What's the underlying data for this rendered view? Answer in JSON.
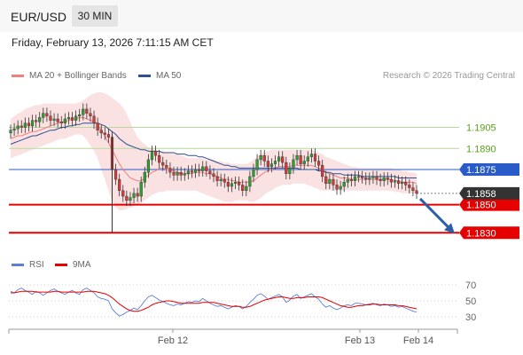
{
  "header": {
    "symbol": "EUR/USD",
    "timeframe": "30 MIN"
  },
  "datetime": "Friday, February 13, 2026 7:11:15 AM CET",
  "legend": [
    {
      "label": "MA 20 + Bollinger Bands",
      "color": "#f08080"
    },
    {
      "label": "MA 50",
      "color": "#2f4f8f"
    }
  ],
  "credit": "Research © 2026 Trading Central",
  "rsi_legend": [
    {
      "label": "RSI",
      "color": "#5b7fd6"
    },
    {
      "label": "9MA",
      "color": "#e60000"
    }
  ],
  "colors": {
    "green_level": "#b5d99c",
    "blue_level": "#2a5cc9",
    "red_level": "#e60000",
    "arrow": "#2b5fa8"
  },
  "chart_data": [
    {
      "type": "candlestick",
      "y_range": [
        1.1815,
        1.1935
      ],
      "x_ticks": [
        "Feb 12",
        "Feb 13",
        "Feb 14"
      ],
      "levels": [
        {
          "value": 1.1905,
          "label": "1.1905",
          "kind": "resistance-light"
        },
        {
          "value": 1.189,
          "label": "1.1890",
          "kind": "resistance-light"
        },
        {
          "value": 1.1875,
          "label": "1.1875",
          "kind": "pivot"
        },
        {
          "value": 1.185,
          "label": "1.1850",
          "kind": "support"
        },
        {
          "value": 1.183,
          "label": "1.1830",
          "kind": "support"
        }
      ],
      "last_price": {
        "value": 1.1858,
        "label": "1.1858"
      },
      "forecast_arrow": {
        "from": 1.1858,
        "to": 1.183,
        "direction": "down"
      },
      "series": {
        "close": [
          1.1903,
          1.1904,
          1.1906,
          1.1905,
          1.1908,
          1.1906,
          1.191,
          1.1909,
          1.1912,
          1.1915,
          1.1913,
          1.191,
          1.1911,
          1.1909,
          1.1908,
          1.1911,
          1.1912,
          1.191,
          1.1913,
          1.1914,
          1.1918,
          1.1915,
          1.1913,
          1.1908,
          1.1903,
          1.1901,
          1.19,
          1.1898,
          1.1875,
          1.1868,
          1.186,
          1.1856,
          1.1853,
          1.1855,
          1.1858,
          1.1856,
          1.1866,
          1.1873,
          1.1882,
          1.1888,
          1.1885,
          1.188,
          1.1878,
          1.1876,
          1.1873,
          1.1871,
          1.1873,
          1.1871,
          1.1872,
          1.1874,
          1.1873,
          1.1875,
          1.1874,
          1.1877,
          1.1874,
          1.1872,
          1.187,
          1.1867,
          1.1868,
          1.1866,
          1.1863,
          1.1865,
          1.1866,
          1.1864,
          1.186,
          1.1863,
          1.187,
          1.1875,
          1.1882,
          1.1885,
          1.1881,
          1.1877,
          1.1879,
          1.1881,
          1.1884,
          1.188,
          1.1872,
          1.1876,
          1.1882,
          1.1885,
          1.1879,
          1.1881,
          1.1884,
          1.1886,
          1.1881,
          1.1878,
          1.187,
          1.1865,
          1.1868,
          1.1864,
          1.1861,
          1.1863,
          1.1866,
          1.1868,
          1.1867,
          1.187,
          1.187,
          1.1869,
          1.1868,
          1.1869,
          1.187,
          1.1868,
          1.1867,
          1.1869,
          1.1868,
          1.1866,
          1.1867,
          1.1865,
          1.1866,
          1.1864,
          1.1862,
          1.186,
          1.1858
        ],
        "ma20": [
          1.1897,
          1.1898,
          1.1899,
          1.1899,
          1.19,
          1.1901,
          1.1902,
          1.1902,
          1.1903,
          1.1904,
          1.1905,
          1.1906,
          1.1907,
          1.1908,
          1.1909,
          1.1909,
          1.191,
          1.1911,
          1.1911,
          1.1912,
          1.1912,
          1.1911,
          1.191,
          1.1909,
          1.1907,
          1.1903,
          1.1899,
          1.1894,
          1.1889,
          1.1884,
          1.1879,
          1.1875,
          1.1872,
          1.1869,
          1.1868,
          1.1867,
          1.1867,
          1.1869,
          1.1871,
          1.1873,
          1.1874,
          1.1876,
          1.1876,
          1.1875,
          1.1875,
          1.1874,
          1.1873,
          1.1872,
          1.1872,
          1.1872,
          1.1872,
          1.1873,
          1.1873,
          1.1873,
          1.1872,
          1.1872,
          1.1871,
          1.187,
          1.1869,
          1.1868,
          1.1868,
          1.1867,
          1.1867,
          1.1866,
          1.1866,
          1.1866,
          1.1866,
          1.1867,
          1.1869,
          1.1871,
          1.1873,
          1.1874,
          1.1875,
          1.1876,
          1.1877,
          1.1877,
          1.1877,
          1.1877,
          1.1878,
          1.1878,
          1.1878,
          1.1878,
          1.1878,
          1.1878,
          1.1877,
          1.1876,
          1.1875,
          1.1873,
          1.1872,
          1.1871,
          1.187,
          1.1869,
          1.1869,
          1.1869,
          1.1868,
          1.1868,
          1.1868,
          1.1868,
          1.1868,
          1.1868,
          1.1868,
          1.1868,
          1.1868,
          1.1868,
          1.1868,
          1.1868,
          1.1867,
          1.1867,
          1.1866,
          1.1866,
          1.1866,
          1.1866,
          1.1865
        ],
        "bb_upper": [
          1.1911,
          1.1913,
          1.1915,
          1.1916,
          1.1918,
          1.1919,
          1.192,
          1.1921,
          1.1921,
          1.1922,
          1.1922,
          1.1922,
          1.1922,
          1.1922,
          1.1922,
          1.1922,
          1.1922,
          1.1922,
          1.1922,
          1.1923,
          1.1924,
          1.1926,
          1.1928,
          1.1929,
          1.193,
          1.193,
          1.1929,
          1.1928,
          1.1926,
          1.1924,
          1.1922,
          1.1919,
          1.1915,
          1.1909,
          1.1903,
          1.1898,
          1.1895,
          1.1893,
          1.1891,
          1.189,
          1.1889,
          1.1888,
          1.1888,
          1.1887,
          1.1887,
          1.1886,
          1.1886,
          1.1885,
          1.1884,
          1.1883,
          1.1883,
          1.1883,
          1.1883,
          1.1883,
          1.1882,
          1.1882,
          1.1882,
          1.1881,
          1.1881,
          1.188,
          1.188,
          1.1879,
          1.1879,
          1.1879,
          1.1879,
          1.1879,
          1.188,
          1.1882,
          1.1884,
          1.1886,
          1.1887,
          1.1888,
          1.1889,
          1.1889,
          1.1889,
          1.1889,
          1.1889,
          1.1889,
          1.1889,
          1.1889,
          1.1889,
          1.1889,
          1.1889,
          1.1889,
          1.1888,
          1.1887,
          1.1886,
          1.1884,
          1.1883,
          1.1882,
          1.1881,
          1.188,
          1.1879,
          1.1878,
          1.1877,
          1.1877,
          1.1876,
          1.1876,
          1.1876,
          1.1876,
          1.1876,
          1.1876,
          1.1876,
          1.1876,
          1.1876,
          1.1876,
          1.1875,
          1.1875,
          1.1874,
          1.1874,
          1.1873,
          1.1873,
          1.1872
        ],
        "bb_lower": [
          1.1883,
          1.1884,
          1.1885,
          1.1886,
          1.1887,
          1.1888,
          1.1889,
          1.189,
          1.1891,
          1.1892,
          1.1893,
          1.1894,
          1.1895,
          1.1896,
          1.1897,
          1.1897,
          1.1898,
          1.1899,
          1.19,
          1.19,
          1.1899,
          1.1896,
          1.1892,
          1.1888,
          1.1883,
          1.1875,
          1.1868,
          1.186,
          1.1853,
          1.1848,
          1.1846,
          1.1846,
          1.1847,
          1.1848,
          1.1849,
          1.185,
          1.1851,
          1.1853,
          1.1855,
          1.1857,
          1.1858,
          1.1859,
          1.1859,
          1.186,
          1.186,
          1.186,
          1.186,
          1.186,
          1.186,
          1.186,
          1.186,
          1.186,
          1.1859,
          1.1858,
          1.1857,
          1.1856,
          1.1855,
          1.1854,
          1.1853,
          1.1852,
          1.1852,
          1.1852,
          1.1853,
          1.1853,
          1.1853,
          1.1853,
          1.1852,
          1.1852,
          1.1853,
          1.1855,
          1.1857,
          1.1859,
          1.186,
          1.1862,
          1.1863,
          1.1864,
          1.1864,
          1.1864,
          1.1865,
          1.1865,
          1.1865,
          1.1865,
          1.1864,
          1.1863,
          1.1862,
          1.1861,
          1.186,
          1.186,
          1.186,
          1.186,
          1.186,
          1.186,
          1.186,
          1.186,
          1.186,
          1.186,
          1.186,
          1.186,
          1.186,
          1.186,
          1.186,
          1.186,
          1.186,
          1.186,
          1.186,
          1.186,
          1.1859,
          1.1859,
          1.1858,
          1.1858,
          1.1858,
          1.1858,
          1.1858
        ],
        "ma50": [
          1.1893,
          1.1894,
          1.1895,
          1.1896,
          1.1897,
          1.1898,
          1.1899,
          1.1899,
          1.19,
          1.1901,
          1.1902,
          1.1903,
          1.1903,
          1.1904,
          1.1905,
          1.1905,
          1.1906,
          1.1906,
          1.1907,
          1.1907,
          1.1908,
          1.1908,
          1.1908,
          1.1908,
          1.1908,
          1.1907,
          1.1906,
          1.1904,
          1.1902,
          1.19,
          1.1897,
          1.1895,
          1.1893,
          1.1892,
          1.1891,
          1.189,
          1.1889,
          1.1889,
          1.1888,
          1.1888,
          1.1888,
          1.1888,
          1.1887,
          1.1887,
          1.1887,
          1.1887,
          1.1886,
          1.1886,
          1.1886,
          1.1885,
          1.1885,
          1.1885,
          1.1884,
          1.1884,
          1.1883,
          1.1882,
          1.1881,
          1.188,
          1.1879,
          1.1878,
          1.1878,
          1.1877,
          1.1877,
          1.1876,
          1.1876,
          1.1876,
          1.1876,
          1.1876,
          1.1876,
          1.1876,
          1.1876,
          1.1876,
          1.1876,
          1.1876,
          1.1876,
          1.1876,
          1.1876,
          1.1876,
          1.1876,
          1.1876,
          1.1875,
          1.1875,
          1.1875,
          1.1875,
          1.1875,
          1.1874,
          1.1874,
          1.1873,
          1.1873,
          1.1872,
          1.1872,
          1.1872,
          1.1871,
          1.1871,
          1.1871,
          1.1871,
          1.1871,
          1.187,
          1.187,
          1.187,
          1.187,
          1.187,
          1.187,
          1.187,
          1.187,
          1.187,
          1.187,
          1.1869,
          1.1869,
          1.1869,
          1.1869,
          1.1869,
          1.1869
        ]
      }
    },
    {
      "type": "line",
      "name": "RSI",
      "y_range": [
        20,
        80
      ],
      "y_ticks": [
        70,
        50,
        30
      ],
      "rsi": [
        62,
        60,
        64,
        66,
        63,
        61,
        58,
        62,
        60,
        57,
        60,
        63,
        65,
        62,
        60,
        58,
        61,
        63,
        60,
        58,
        64,
        66,
        63,
        60,
        55,
        53,
        52,
        50,
        40,
        35,
        31,
        33,
        36,
        38,
        41,
        39,
        44,
        50,
        55,
        57,
        54,
        51,
        49,
        47,
        45,
        44,
        46,
        45,
        47,
        49,
        48,
        50,
        49,
        53,
        50,
        47,
        45,
        43,
        44,
        42,
        40,
        42,
        44,
        43,
        40,
        43,
        48,
        52,
        57,
        59,
        56,
        52,
        54,
        56,
        58,
        55,
        48,
        51,
        56,
        58,
        53,
        55,
        57,
        59,
        55,
        52,
        46,
        42,
        44,
        41,
        39,
        41,
        44,
        45,
        44,
        47,
        47,
        46,
        45,
        46,
        47,
        45,
        44,
        46,
        45,
        43,
        44,
        42,
        43,
        41,
        39,
        37,
        36
      ],
      "ma9": [
        60,
        60,
        61,
        62,
        62,
        62,
        62,
        61,
        61,
        61,
        61,
        61,
        62,
        62,
        61,
        61,
        61,
        61,
        61,
        61,
        61,
        62,
        62,
        62,
        61,
        60,
        59,
        57,
        54,
        50,
        46,
        43,
        40,
        38,
        37,
        37,
        38,
        40,
        42,
        45,
        47,
        48,
        49,
        50,
        50,
        49,
        48,
        47,
        47,
        47,
        47,
        47,
        47,
        48,
        48,
        48,
        48,
        47,
        46,
        45,
        44,
        43,
        43,
        43,
        42,
        42,
        43,
        45,
        47,
        49,
        51,
        52,
        53,
        54,
        55,
        55,
        54,
        53,
        53,
        54,
        54,
        54,
        55,
        55,
        55,
        55,
        54,
        52,
        50,
        48,
        46,
        44,
        43,
        42,
        42,
        43,
        44,
        44,
        45,
        45,
        46,
        46,
        45,
        45,
        45,
        45,
        45,
        44,
        44,
        43,
        42,
        41,
        40
      ]
    }
  ]
}
